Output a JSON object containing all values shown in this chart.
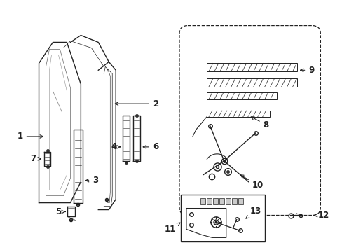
{
  "bg_color": "#ffffff",
  "line_color": "#222222",
  "fig_width": 4.89,
  "fig_height": 3.6,
  "dpi": 100
}
